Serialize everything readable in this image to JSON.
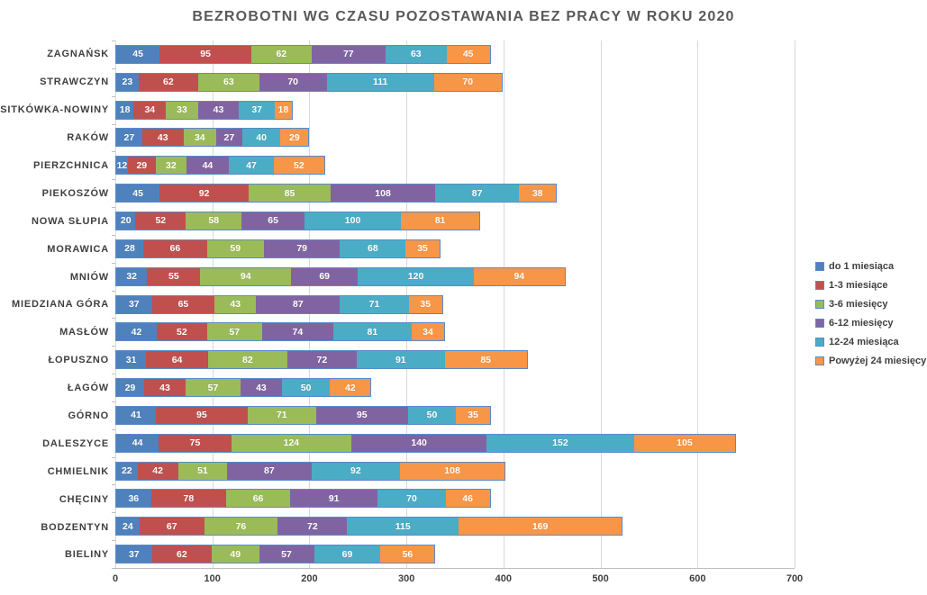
{
  "title": "BEZROBOTNI WG CZASU POZOSTAWANIA BEZ PRACY W ROKU 2020",
  "colors": {
    "grid": "#d9d9d9",
    "axis": "#bfbfbf",
    "bar_border": "#5b8bc9",
    "title_text": "#595959",
    "label_text": "#3f3f3f",
    "value_label_text": "#ffffff"
  },
  "chart_data": {
    "type": "bar",
    "orientation": "horizontal-stacked",
    "title": "BEZROBOTNI WG CZASU POZOSTAWANIA BEZ PRACY W ROKU 2020",
    "xlabel": "",
    "ylabel": "",
    "xlim": [
      0,
      700
    ],
    "x_ticks": [
      0,
      100,
      200,
      300,
      400,
      500,
      600,
      700
    ],
    "grid": "vertical",
    "legend_position": "right",
    "data_labels": "inside-center-white",
    "categories": [
      "ZAGNAŃSK",
      "STRAWCZYN",
      "SITKÓWKA-NOWINY",
      "RAKÓW",
      "PIERZCHNICA",
      "PIEKOSZÓW",
      "NOWA SŁUPIA",
      "MORAWICA",
      "MNIÓW",
      "MIEDZIANA GÓRA",
      "MASŁÓW",
      "ŁOPUSZNO",
      "ŁAGÓW",
      "GÓRNO",
      "DALESZYCE",
      "CHMIELNIK",
      "CHĘCINY",
      "BODZENTYN",
      "BIELINY"
    ],
    "series": [
      {
        "name": "do 1 miesiąca",
        "color": "#4f81bd",
        "values": [
          45,
          23,
          18,
          27,
          12,
          45,
          20,
          28,
          32,
          37,
          42,
          31,
          29,
          41,
          44,
          22,
          36,
          24,
          37
        ]
      },
      {
        "name": "1-3 miesiące",
        "color": "#c0504d",
        "values": [
          95,
          62,
          34,
          43,
          29,
          92,
          52,
          66,
          55,
          65,
          52,
          64,
          43,
          95,
          75,
          42,
          78,
          67,
          62
        ]
      },
      {
        "name": "3-6 miesięcy",
        "color": "#9bbb59",
        "values": [
          62,
          63,
          33,
          34,
          32,
          85,
          58,
          59,
          94,
          43,
          57,
          82,
          57,
          71,
          124,
          51,
          66,
          76,
          49
        ]
      },
      {
        "name": "6-12 miesięcy",
        "color": "#8064a2",
        "values": [
          77,
          70,
          43,
          27,
          44,
          108,
          65,
          79,
          69,
          87,
          74,
          72,
          43,
          95,
          140,
          87,
          91,
          72,
          57
        ]
      },
      {
        "name": "12-24 miesiąca",
        "color": "#4bacc6",
        "values": [
          63,
          111,
          37,
          40,
          47,
          87,
          100,
          68,
          120,
          71,
          81,
          91,
          50,
          50,
          152,
          92,
          70,
          115,
          69
        ]
      },
      {
        "name": "Powyżej 24 miesięcy",
        "color": "#f79646",
        "values": [
          45,
          70,
          18,
          29,
          52,
          38,
          81,
          35,
          94,
          35,
          34,
          85,
          42,
          35,
          105,
          108,
          46,
          169,
          56
        ]
      }
    ]
  }
}
